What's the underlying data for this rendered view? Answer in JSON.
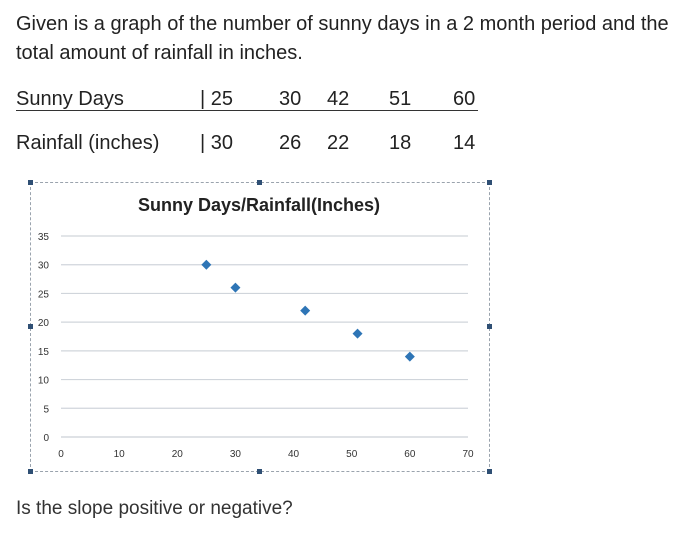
{
  "question": {
    "line1": "Given is a graph of the number of sunny days in a 2 month period and the",
    "line2": "total amount of rainfall in inches."
  },
  "table": {
    "sunny_label": "Sunny Days",
    "sunny_values": [
      "| 25",
      "30",
      "42",
      "51",
      "60"
    ],
    "rain_label": "Rainfall (inches)",
    "rain_values": [
      "| 30",
      "26",
      "22",
      "18",
      "14"
    ]
  },
  "chart_data": {
    "type": "scatter",
    "title": "Sunny Days/Rainfall(Inches)",
    "xlabel": "",
    "ylabel": "",
    "x": [
      25,
      30,
      42,
      51,
      60
    ],
    "y": [
      30,
      26,
      22,
      18,
      14
    ],
    "xlim": [
      0,
      70
    ],
    "ylim": [
      0,
      35
    ],
    "xticks": [
      "0",
      "10",
      "20",
      "30",
      "40",
      "50",
      "60",
      "70"
    ],
    "yticks": [
      "0",
      "5",
      "10",
      "15",
      "20",
      "25",
      "30",
      "35"
    ],
    "grid": true,
    "marker_color": "#2e75b6",
    "grid_color": "#d0d5db"
  },
  "footer": {
    "prompt": "Is the slope positive or negative?"
  }
}
